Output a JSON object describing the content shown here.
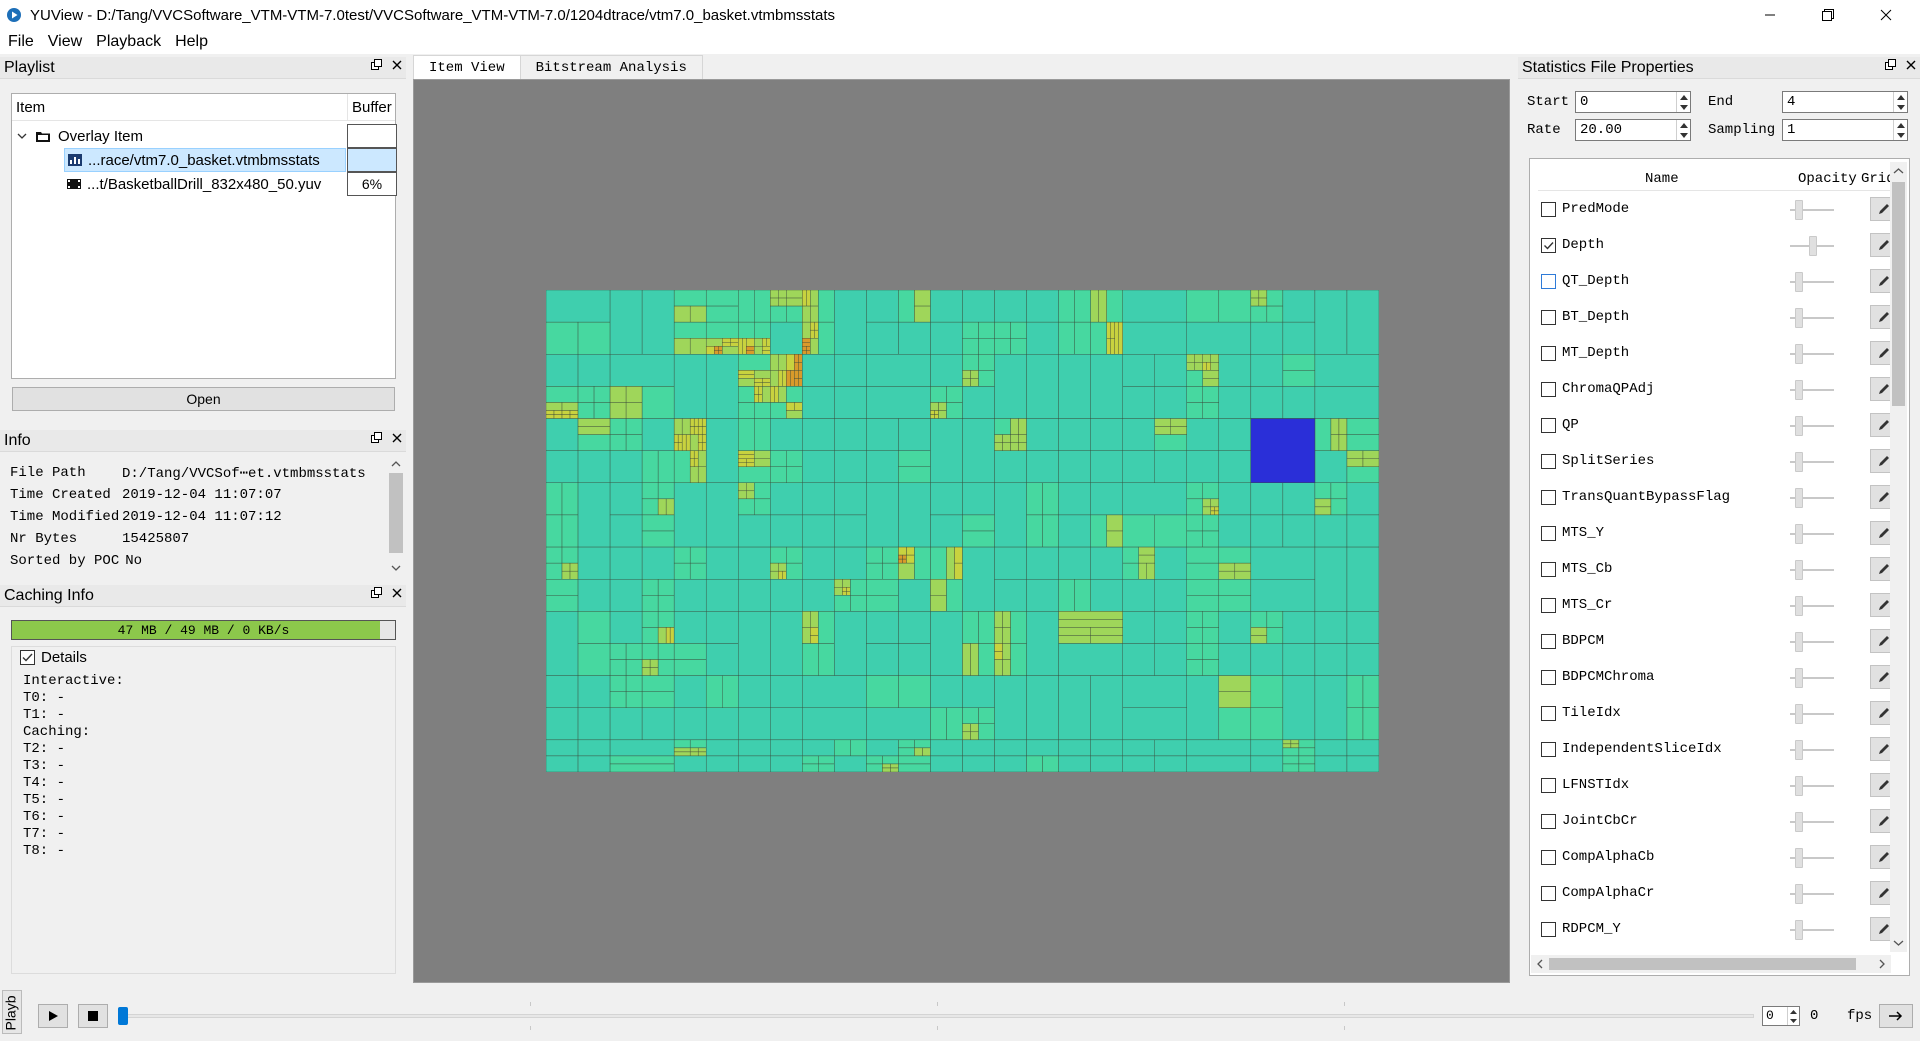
{
  "window": {
    "title": "YUView - D:/Tang/VVCSoftware_VTM-VTM-7.0test/VVCSoftware_VTM-VTM-7.0/1204dtrace/vtm7.0_basket.vtmbmsstats"
  },
  "menu": [
    "File",
    "View",
    "Playback",
    "Help"
  ],
  "playlist": {
    "title": "Playlist",
    "col_item": "Item",
    "col_buffer": "Buffer",
    "items": [
      {
        "label": "Overlay Item",
        "buffer": ""
      },
      {
        "label": "...race/vtm7.0_basket.vtmbmsstats",
        "buffer": ""
      },
      {
        "label": "...t/BasketballDrill_832x480_50.yuv",
        "buffer": "6%"
      }
    ],
    "open_label": "Open"
  },
  "info": {
    "title": "Info",
    "rows": [
      {
        "key": "File Path",
        "value": "D:/Tang/VVCSof⋯et.vtmbmsstats"
      },
      {
        "key": "Time Created",
        "value": "2019-12-04 11:07:07"
      },
      {
        "key": "Time Modified",
        "value": "2019-12-04 11:07:12"
      },
      {
        "key": "Nr Bytes",
        "value": "15425807"
      },
      {
        "key": "Sorted by POC",
        "value": "No"
      }
    ]
  },
  "caching": {
    "title": "Caching Info",
    "bar_text": "47 MB / 49 MB / 0 KB/s",
    "fill_fraction": 0.96,
    "details_label": "Details",
    "details_checked": true,
    "details_text": "Interactive:\nT0: -\nT1: -\nCaching:\nT2: -\nT3: -\nT4: -\nT5: -\nT6: -\nT7: -\nT8: -"
  },
  "tabs": [
    "Item View",
    "Bitstream Analysis"
  ],
  "active_tab": 0,
  "stats_panel": {
    "title": "Statistics File Properties",
    "start_label": "Start",
    "start_value": "0",
    "end_label": "End",
    "end_value": "4",
    "rate_label": "Rate",
    "rate_value": "20.00",
    "sampling_label": "Sampling",
    "sampling_value": "1",
    "col_name": "Name",
    "col_opacity": "Opacity",
    "col_grid": "Grid",
    "items": [
      {
        "name": "PredMode",
        "checked": false
      },
      {
        "name": "Depth",
        "checked": true
      },
      {
        "name": "QT_Depth",
        "checked": false
      },
      {
        "name": "BT_Depth",
        "checked": false
      },
      {
        "name": "MT_Depth",
        "checked": false
      },
      {
        "name": "ChromaQPAdj",
        "checked": false
      },
      {
        "name": "QP",
        "checked": false
      },
      {
        "name": "SplitSeries",
        "checked": false
      },
      {
        "name": "TransQuantBypassFlag",
        "checked": false
      },
      {
        "name": "MTS_Y",
        "checked": false
      },
      {
        "name": "MTS_Cb",
        "checked": false
      },
      {
        "name": "MTS_Cr",
        "checked": false
      },
      {
        "name": "BDPCM",
        "checked": false
      },
      {
        "name": "BDPCMChroma",
        "checked": false
      },
      {
        "name": "TileIdx",
        "checked": false
      },
      {
        "name": "IndependentSliceIdx",
        "checked": false
      },
      {
        "name": "LFNSTIdx",
        "checked": false
      },
      {
        "name": "JointCbCr",
        "checked": false
      },
      {
        "name": "CompAlphaCb",
        "checked": false
      },
      {
        "name": "CompAlphaCr",
        "checked": false
      },
      {
        "name": "RDPCM_Y",
        "checked": false
      }
    ]
  },
  "playback": {
    "tab_label": "Playb",
    "fps_spin_value": "0",
    "fps_value": "0",
    "fps_label": "fps"
  },
  "colors": {
    "accent": "#0078d7",
    "cache_fill": "#8cc84b",
    "depth_palette": [
      "#2a2fd8",
      "#2b8fd6",
      "#3fcfae",
      "#47d8a0",
      "#9fd65a",
      "#c8d23f",
      "#d99a2a",
      "#d47a22",
      "#c82a1e"
    ]
  }
}
